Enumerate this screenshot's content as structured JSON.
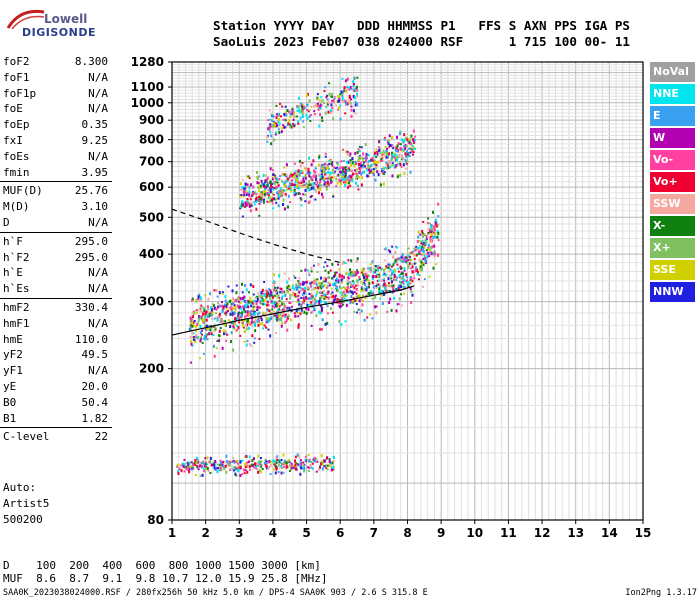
{
  "logo": {
    "line1": "Lowell",
    "line2": "DIGISONDE"
  },
  "header": {
    "line1": "Station YYYY DAY   DDD HHMMSS P1   FFS S AXN PPS IGA PS",
    "line2": "SaoLuis 2023 Feb07 038 024000 RSF      1 715 100 00- 11"
  },
  "params": {
    "group1": [
      {
        "name": "foF2",
        "value": "8.300"
      },
      {
        "name": "foF1",
        "value": "N/A"
      },
      {
        "name": "foF1p",
        "value": "N/A"
      },
      {
        "name": "foE",
        "value": "N/A"
      },
      {
        "name": "foEp",
        "value": "0.35"
      },
      {
        "name": "fxI",
        "value": "9.25"
      },
      {
        "name": "foEs",
        "value": "N/A"
      },
      {
        "name": "fmin",
        "value": "3.95"
      }
    ],
    "group2": [
      {
        "name": "MUF(D)",
        "value": "25.76"
      },
      {
        "name": "M(D)",
        "value": "3.10"
      },
      {
        "name": "D",
        "value": "N/A"
      }
    ],
    "group3": [
      {
        "name": "h`F",
        "value": "295.0"
      },
      {
        "name": "h`F2",
        "value": "295.0"
      },
      {
        "name": "h`E",
        "value": "N/A"
      },
      {
        "name": "h`Es",
        "value": "N/A"
      }
    ],
    "group4": [
      {
        "name": "hmF2",
        "value": "330.4"
      },
      {
        "name": "hmF1",
        "value": "N/A"
      },
      {
        "name": "hmE",
        "value": "110.0"
      },
      {
        "name": "yF2",
        "value": "49.5"
      },
      {
        "name": "yF1",
        "value": "N/A"
      },
      {
        "name": "yE",
        "value": "20.0"
      },
      {
        "name": "B0",
        "value": "50.4"
      },
      {
        "name": "B1",
        "value": "1.82"
      }
    ],
    "group5": [
      {
        "name": "C-level",
        "value": "22"
      }
    ]
  },
  "auto": {
    "line1": "Auto:",
    "line2": "Artist5",
    "line3": "500200"
  },
  "legend": [
    {
      "label": "NoVal",
      "color": "#a0a0a0"
    },
    {
      "label": "NNE",
      "color": "#00e5ee"
    },
    {
      "label": "E",
      "color": "#3aa0f0"
    },
    {
      "label": "W",
      "color": "#b000b0"
    },
    {
      "label": "Vo-",
      "color": "#ff40a0"
    },
    {
      "label": "Vo+",
      "color": "#ee0030"
    },
    {
      "label": "SSW",
      "color": "#f4a8a0"
    },
    {
      "label": "X-",
      "color": "#108010"
    },
    {
      "label": "X+",
      "color": "#80c060"
    },
    {
      "label": "SSE",
      "color": "#d0d000"
    },
    {
      "label": "NNW",
      "color": "#2020e0"
    }
  ],
  "dtable": {
    "line1": "D    100  200  400  600  800 1000 1500 3000 [km]",
    "line2": "MUF  8.6  8.7  9.1  9.8 10.7 12.0 15.9 25.8 [MHz]"
  },
  "footer": {
    "left": "SAA0K_2023038024000.RSF / 280fx256h 50 kHz 5.0 km / DPS-4 SAA0K 903 / 2.6 S 315.8 E",
    "right": "Ion2Png 1.3.17"
  },
  "chart_data": {
    "type": "scatter",
    "title": "",
    "xlabel": "",
    "ylabel": "",
    "xlim": [
      1,
      15
    ],
    "ylim": [
      80,
      1280
    ],
    "y_scale": "log",
    "x_ticks": [
      1,
      2,
      3,
      4,
      5,
      6,
      7,
      8,
      9,
      10,
      11,
      12,
      13,
      14,
      15
    ],
    "y_ticks": [
      80,
      200,
      300,
      400,
      500,
      600,
      700,
      800,
      900,
      1000,
      1100,
      1280
    ],
    "grid": true,
    "series": [
      {
        "name": "O-trace F2 (1st hop)",
        "points": [
          [
            1.5,
            258
          ],
          [
            2,
            268
          ],
          [
            3,
            282
          ],
          [
            4,
            298
          ],
          [
            5,
            312
          ],
          [
            6,
            326
          ],
          [
            7,
            342
          ],
          [
            7.5,
            352
          ],
          [
            8,
            366
          ],
          [
            8.3,
            395
          ],
          [
            8.6,
            430
          ],
          [
            8.9,
            460
          ]
        ]
      },
      {
        "name": "2nd hop",
        "points": [
          [
            3,
            565
          ],
          [
            4,
            600
          ],
          [
            5,
            635
          ],
          [
            6,
            665
          ],
          [
            7,
            700
          ],
          [
            7.5,
            730
          ],
          [
            8,
            760
          ],
          [
            8.2,
            785
          ]
        ]
      },
      {
        "name": "3rd hop",
        "points": [
          [
            3.8,
            870
          ],
          [
            4.5,
            920
          ],
          [
            5,
            960
          ],
          [
            5.5,
            1000
          ],
          [
            6,
            1040
          ],
          [
            6.5,
            1060
          ]
        ]
      },
      {
        "name": "Es (~110 km)",
        "points": [
          [
            1.1,
            110
          ],
          [
            2,
            112
          ],
          [
            3,
            112
          ],
          [
            4,
            113
          ],
          [
            5,
            113
          ],
          [
            5.8,
            112
          ]
        ]
      }
    ],
    "profile_curves": [
      {
        "name": "electron density profile (solid)",
        "points": [
          [
            1,
            245
          ],
          [
            3,
            268
          ],
          [
            5,
            290
          ],
          [
            6,
            300
          ],
          [
            7,
            312
          ],
          [
            7.8,
            322
          ],
          [
            8.2,
            330
          ]
        ]
      },
      {
        "name": "lower boundary (dashed)",
        "points": [
          [
            1,
            525
          ],
          [
            2,
            490
          ],
          [
            3,
            455
          ],
          [
            4,
            425
          ],
          [
            5,
            400
          ],
          [
            6,
            380
          ]
        ]
      }
    ]
  }
}
